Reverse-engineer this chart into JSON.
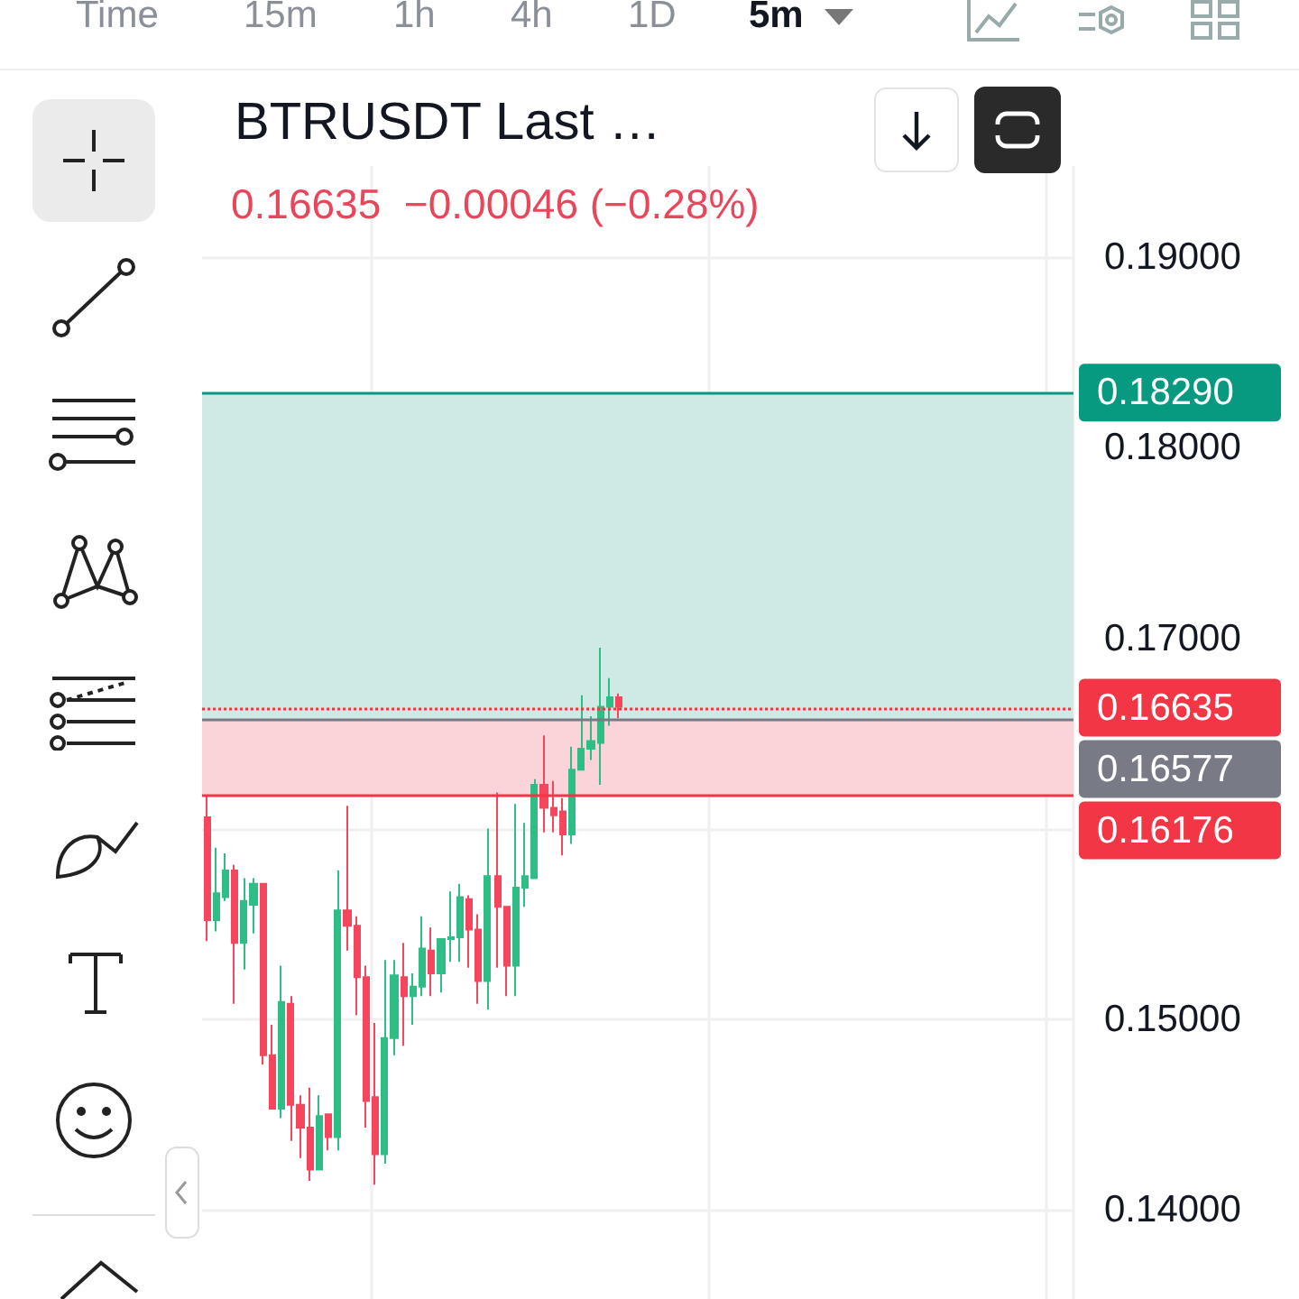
{
  "chart_data": {
    "type": "candlestick",
    "title": "BTRUSDT Last …",
    "subtitle": "0.16635  −0.00046 (−0.28%)",
    "annotations": [
      "Time",
      "15m",
      "1h",
      "4h",
      "1D",
      "5m"
    ],
    "categories": [
      null,
      null,
      null,
      null,
      null,
      null,
      null,
      null,
      null,
      null,
      null,
      null,
      null,
      null,
      null,
      null,
      null,
      null,
      null,
      null,
      null,
      null,
      null,
      null,
      null,
      null,
      null,
      null,
      null,
      null,
      null,
      null,
      null,
      null,
      null,
      null,
      null,
      null,
      null,
      null,
      null,
      null,
      null,
      null,
      null,
      null,
      null,
      null,
      null,
      null,
      null,
      null,
      null,
      null,
      null,
      null,
      null,
      null,
      null,
      null,
      null,
      null,
      null,
      null,
      null,
      null,
      null,
      null,
      null,
      null,
      null,
      null,
      null,
      null,
      null,
      null,
      null,
      null,
      null,
      null,
      null,
      null,
      null,
      null,
      null,
      null,
      null,
      null,
      null,
      null,
      null,
      null,
      null
    ],
    "ohlc": [
      [
        0.1606,
        0.1617,
        0.1541,
        0.1552
      ],
      [
        0.1552,
        0.159,
        0.1546,
        0.1566
      ],
      [
        0.1564,
        0.1587,
        0.1562,
        0.1578
      ],
      [
        0.1578,
        0.1581,
        0.1508,
        0.154
      ],
      [
        0.154,
        0.1574,
        0.1526,
        0.1562
      ],
      [
        0.156,
        0.1574,
        0.1545,
        0.1571
      ],
      [
        0.1571,
        0.1571,
        0.1476,
        0.1481
      ],
      [
        0.1481,
        0.1497,
        0.1453,
        0.1453
      ],
      [
        0.1453,
        0.1528,
        0.1448,
        0.1509
      ],
      [
        0.1508,
        0.1512,
        0.1436,
        0.1455
      ],
      [
        0.1455,
        0.146,
        0.1427,
        0.1443
      ],
      [
        0.1443,
        0.1464,
        0.1415,
        0.1421
      ],
      [
        0.1421,
        0.146,
        0.1421,
        0.1449
      ],
      [
        0.145,
        0.145,
        0.1431,
        0.1438
      ],
      [
        0.1438,
        0.1578,
        0.1431,
        0.1557
      ],
      [
        0.1557,
        0.1612,
        0.1536,
        0.1549
      ],
      [
        0.1549,
        0.1554,
        0.1502,
        0.1522
      ],
      [
        0.1522,
        0.1528,
        0.1443,
        0.1457
      ],
      [
        0.1459,
        0.1498,
        0.1413,
        0.1429
      ],
      [
        0.1429,
        0.1531,
        0.1424,
        0.149
      ],
      [
        0.149,
        0.1531,
        0.1481,
        0.1523
      ],
      [
        0.1522,
        0.154,
        0.1486,
        0.1512
      ],
      [
        0.1512,
        0.1524,
        0.1497,
        0.1517
      ],
      [
        0.1517,
        0.1554,
        0.1512,
        0.1537
      ],
      [
        0.1536,
        0.1548,
        0.1512,
        0.1524
      ],
      [
        0.1524,
        0.1542,
        0.1514,
        0.1542
      ],
      [
        0.1542,
        0.1567,
        0.153,
        0.1543
      ],
      [
        0.1543,
        0.1571,
        0.153,
        0.1564
      ],
      [
        0.1563,
        0.1565,
        0.1527,
        0.1547
      ],
      [
        0.1547,
        0.1555,
        0.1508,
        0.152
      ],
      [
        0.152,
        0.16,
        0.1505,
        0.1575
      ],
      [
        0.1575,
        0.1619,
        0.1527,
        0.1559
      ],
      [
        0.1559,
        0.1559,
        0.1512,
        0.1528
      ],
      [
        0.1528,
        0.1613,
        0.1512,
        0.1569
      ],
      [
        0.1569,
        0.1603,
        0.1559,
        0.1575
      ],
      [
        0.1574,
        0.1626,
        0.1574,
        0.1623
      ],
      [
        0.1623,
        0.1649,
        0.1598,
        0.1611
      ],
      [
        0.1611,
        0.1625,
        0.1598,
        0.1607
      ],
      [
        0.1609,
        0.1616,
        0.1586,
        0.1597
      ],
      [
        0.1597,
        0.1643,
        0.1592,
        0.1631
      ],
      [
        0.1631,
        0.167,
        0.1631,
        0.1642
      ],
      [
        0.1642,
        0.1659,
        0.1636,
        0.1646
      ],
      [
        0.1645,
        0.1695,
        0.1623,
        0.1664
      ],
      [
        0.1664,
        0.1679,
        0.1654,
        0.1669
      ],
      [
        0.1669,
        0.1671,
        0.1658,
        0.1664
      ],
      null,
      null,
      null,
      null,
      null,
      null,
      null,
      null,
      null,
      null,
      null,
      null,
      null,
      null,
      null,
      null,
      null,
      null,
      null,
      null,
      null,
      null,
      null,
      null,
      null,
      null,
      null,
      null,
      null,
      null,
      null,
      null,
      null,
      null,
      null,
      null,
      null,
      null,
      null,
      null,
      null,
      null,
      null,
      null,
      null,
      null,
      null,
      null
    ],
    "colors": [
      "#f6465d",
      "#2ebd85",
      "#2ebd85",
      "#f6465d",
      "#2ebd85",
      "#2ebd85",
      "#f6465d",
      "#f6465d",
      "#2ebd85",
      "#f6465d",
      "#f6465d",
      "#f6465d",
      "#2ebd85",
      "#f6465d",
      "#2ebd85",
      "#f6465d",
      "#f6465d",
      "#f6465d",
      "#f6465d",
      "#2ebd85",
      "#2ebd85",
      "#f6465d",
      "#2ebd85",
      "#2ebd85",
      "#f6465d",
      "#2ebd85",
      "#2ebd85",
      "#2ebd85",
      "#f6465d",
      "#f6465d",
      "#2ebd85",
      "#f6465d",
      "#f6465d",
      "#2ebd85",
      "#2ebd85",
      "#2ebd85",
      "#f6465d",
      "#f6465d",
      "#f6465d",
      "#2ebd85",
      "#2ebd85",
      "#2ebd85",
      "#2ebd85",
      "#2ebd85",
      "#f6465d",
      null,
      null,
      null,
      null,
      null,
      null,
      null,
      null,
      null,
      null,
      null,
      null,
      null,
      null,
      null,
      null,
      null,
      null,
      null,
      null,
      null,
      null,
      null,
      null,
      null,
      null,
      null,
      null,
      null,
      null,
      null,
      null,
      null,
      null,
      null,
      null,
      null,
      null,
      null,
      null,
      null,
      null,
      null,
      null,
      null,
      null,
      null,
      null
    ],
    "ylim": [
      0.1353,
      0.1948
    ],
    "yticks": [
      {
        "value": 0.14,
        "label": "0.14000"
      },
      {
        "value": 0.15,
        "label": "0.15000"
      },
      {
        "value": 0.16,
        "label": null
      },
      {
        "value": 0.17,
        "label": "0.17000"
      },
      {
        "value": 0.18,
        "label": "0.18000"
      },
      {
        "value": 0.19,
        "label": "0.19000"
      }
    ],
    "ref_lines": [
      {
        "axis": "y",
        "value": 0.1829,
        "label": "0.18290",
        "color": "#089981",
        "line_style": "solid"
      },
      {
        "axis": "y",
        "value": 0.16635,
        "label": "0.16635",
        "color": "#f23645",
        "line_style": "dotted"
      },
      {
        "axis": "y",
        "value": 0.16577,
        "label": "0.16577",
        "color": "#787b86",
        "line_style": "solid"
      },
      {
        "axis": "y",
        "value": 0.16176,
        "label": "0.16176",
        "color": "#f23645",
        "line_style": "solid"
      }
    ],
    "bands": [
      {
        "axis": "y",
        "from": 0.16577,
        "to": 0.1829,
        "color": "#cfeae4"
      },
      {
        "axis": "y",
        "from": 0.16176,
        "to": 0.16577,
        "color": "#fad4d8"
      }
    ],
    "grid": true,
    "tick_labels": "y"
  }
}
